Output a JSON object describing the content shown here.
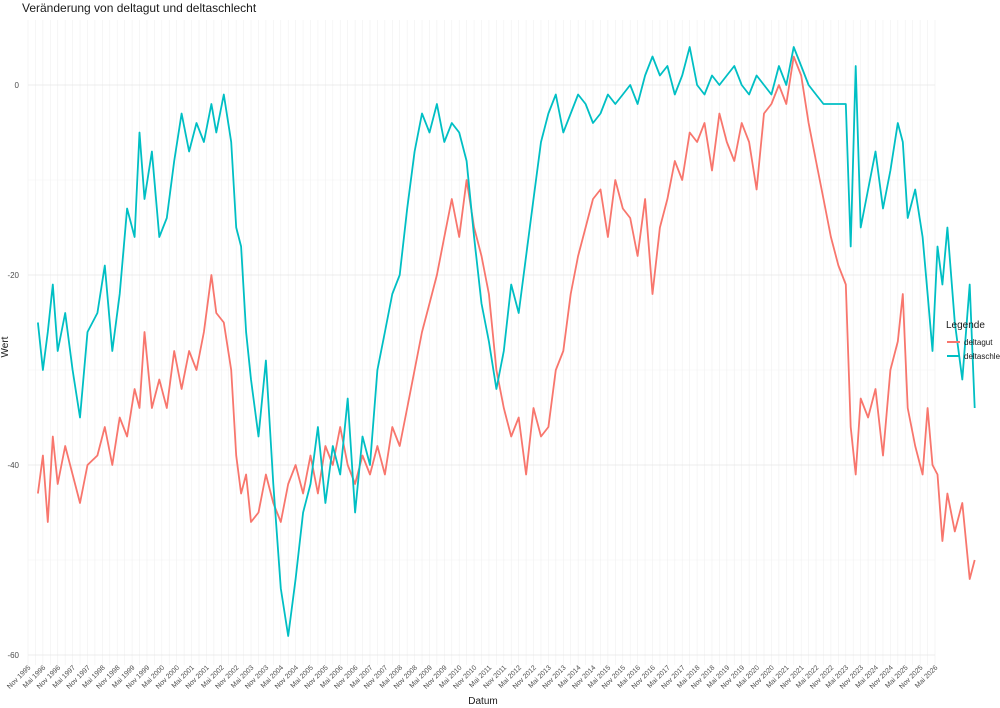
{
  "chart_data": {
    "type": "line",
    "title": "Veränderung von deltagut und deltaschlecht",
    "xlabel": "Datum",
    "ylabel": "Wert",
    "ylim": [
      -61.5,
      6
    ],
    "yticks": [
      0,
      -20,
      -40,
      -60
    ],
    "grid": true,
    "legend": {
      "title": "Legende",
      "placement": "right"
    },
    "x_axis": {
      "type": "date",
      "range": [
        "1995-11",
        "2026-05"
      ],
      "tick_labels": [
        "Nov 1995",
        "Mai 1996",
        "Nov 1996",
        "Mai 1997",
        "Nov 1997",
        "Mai 1998",
        "Nov 1998",
        "Mai 1999",
        "Nov 1999",
        "Mai 2000",
        "Nov 2000",
        "Mai 2001",
        "Nov 2001",
        "Mai 2002",
        "Nov 2002",
        "Mai 2003",
        "Nov 2003",
        "Mai 2004",
        "Nov 2004",
        "Mai 2005",
        "Nov 2005",
        "Mai 2006",
        "Nov 2006",
        "Mai 2007",
        "Nov 2007",
        "Mai 2008",
        "Nov 2008",
        "Mai 2009",
        "Nov 2009",
        "Mai 2010",
        "Nov 2010",
        "Mai 2011",
        "Nov 2011",
        "Mai 2012",
        "Nov 2012",
        "Mai 2013",
        "Nov 2013",
        "Mai 2014",
        "Nov 2014",
        "Mai 2015",
        "Nov 2015",
        "Mai 2016",
        "Nov 2016",
        "Mai 2017",
        "Nov 2017",
        "Mai 2018",
        "Nov 2018",
        "Mai 2019",
        "Nov 2019",
        "Mai 2020",
        "Nov 2020",
        "Mai 2021",
        "Nov 2021",
        "Mai 2022",
        "Nov 2022",
        "Mai 2023",
        "Nov 2023",
        "Mai 2024",
        "Nov 2024",
        "Mai 2025",
        "Nov 2025",
        "Mai 2026"
      ]
    },
    "series": [
      {
        "name": "deltagut",
        "color": "#F8766D",
        "points": [
          [
            "1996-03",
            -43
          ],
          [
            "1996-05",
            -39
          ],
          [
            "1996-07",
            -46
          ],
          [
            "1996-09",
            -37
          ],
          [
            "1996-11",
            -42
          ],
          [
            "1997-02",
            -38
          ],
          [
            "1997-05",
            -41
          ],
          [
            "1997-08",
            -44
          ],
          [
            "1997-11",
            -40
          ],
          [
            "1998-03",
            -39
          ],
          [
            "1998-06",
            -36
          ],
          [
            "1998-09",
            -40
          ],
          [
            "1998-12",
            -35
          ],
          [
            "1999-03",
            -37
          ],
          [
            "1999-06",
            -32
          ],
          [
            "1999-08",
            -34
          ],
          [
            "1999-10",
            -26
          ],
          [
            "2000-01",
            -34
          ],
          [
            "2000-04",
            -31
          ],
          [
            "2000-07",
            -34
          ],
          [
            "2000-10",
            -28
          ],
          [
            "2001-01",
            -32
          ],
          [
            "2001-04",
            -28
          ],
          [
            "2001-07",
            -30
          ],
          [
            "2001-10",
            -26
          ],
          [
            "2002-01",
            -20
          ],
          [
            "2002-03",
            -24
          ],
          [
            "2002-06",
            -25
          ],
          [
            "2002-09",
            -30
          ],
          [
            "2002-11",
            -39
          ],
          [
            "2003-01",
            -43
          ],
          [
            "2003-03",
            -41
          ],
          [
            "2003-05",
            -46
          ],
          [
            "2003-08",
            -45
          ],
          [
            "2003-11",
            -41
          ],
          [
            "2004-02",
            -44
          ],
          [
            "2004-05",
            -46
          ],
          [
            "2004-08",
            -42
          ],
          [
            "2004-11",
            -40
          ],
          [
            "2005-02",
            -43
          ],
          [
            "2005-05",
            -39
          ],
          [
            "2005-08",
            -43
          ],
          [
            "2005-11",
            -38
          ],
          [
            "2006-02",
            -40
          ],
          [
            "2006-05",
            -36
          ],
          [
            "2006-08",
            -40
          ],
          [
            "2006-11",
            -42
          ],
          [
            "2007-02",
            -39
          ],
          [
            "2007-05",
            -41
          ],
          [
            "2007-08",
            -38
          ],
          [
            "2007-11",
            -41
          ],
          [
            "2008-02",
            -36
          ],
          [
            "2008-05",
            -38
          ],
          [
            "2008-08",
            -34
          ],
          [
            "2008-11",
            -30
          ],
          [
            "2009-02",
            -26
          ],
          [
            "2009-05",
            -23
          ],
          [
            "2009-08",
            -20
          ],
          [
            "2009-11",
            -16
          ],
          [
            "2010-02",
            -12
          ],
          [
            "2010-05",
            -16
          ],
          [
            "2010-08",
            -10
          ],
          [
            "2010-11",
            -15
          ],
          [
            "2011-02",
            -18
          ],
          [
            "2011-05",
            -22
          ],
          [
            "2011-08",
            -30
          ],
          [
            "2011-11",
            -34
          ],
          [
            "2012-02",
            -37
          ],
          [
            "2012-05",
            -35
          ],
          [
            "2012-08",
            -41
          ],
          [
            "2012-11",
            -34
          ],
          [
            "2013-02",
            -37
          ],
          [
            "2013-05",
            -36
          ],
          [
            "2013-08",
            -30
          ],
          [
            "2013-11",
            -28
          ],
          [
            "2014-02",
            -22
          ],
          [
            "2014-05",
            -18
          ],
          [
            "2014-08",
            -15
          ],
          [
            "2014-11",
            -12
          ],
          [
            "2015-02",
            -11
          ],
          [
            "2015-05",
            -16
          ],
          [
            "2015-08",
            -10
          ],
          [
            "2015-11",
            -13
          ],
          [
            "2016-02",
            -14
          ],
          [
            "2016-05",
            -18
          ],
          [
            "2016-08",
            -12
          ],
          [
            "2016-11",
            -22
          ],
          [
            "2017-02",
            -15
          ],
          [
            "2017-05",
            -12
          ],
          [
            "2017-08",
            -8
          ],
          [
            "2017-11",
            -10
          ],
          [
            "2018-02",
            -5
          ],
          [
            "2018-05",
            -6
          ],
          [
            "2018-08",
            -4
          ],
          [
            "2018-11",
            -9
          ],
          [
            "2019-02",
            -3
          ],
          [
            "2019-05",
            -6
          ],
          [
            "2019-08",
            -8
          ],
          [
            "2019-11",
            -4
          ],
          [
            "2020-02",
            -6
          ],
          [
            "2020-05",
            -11
          ],
          [
            "2020-08",
            -3
          ],
          [
            "2020-11",
            -2
          ],
          [
            "2021-02",
            0
          ],
          [
            "2021-05",
            -2
          ],
          [
            "2021-08",
            3
          ],
          [
            "2021-11",
            1
          ],
          [
            "2022-02",
            -4
          ],
          [
            "2022-05",
            -8
          ],
          [
            "2022-08",
            -12
          ],
          [
            "2022-11",
            -16
          ],
          [
            "2023-02",
            -19
          ],
          [
            "2023-05",
            -21
          ],
          [
            "2023-07",
            -36
          ],
          [
            "2023-09",
            -41
          ],
          [
            "2023-11",
            -33
          ],
          [
            "2024-02",
            -35
          ],
          [
            "2024-05",
            -32
          ],
          [
            "2024-08",
            -39
          ],
          [
            "2024-11",
            -30
          ],
          [
            "2025-02",
            -27
          ],
          [
            "2025-04",
            -22
          ],
          [
            "2025-06",
            -34
          ],
          [
            "2025-09",
            -38
          ],
          [
            "2025-12",
            -41
          ],
          [
            "2026-02",
            -34
          ],
          [
            "2026-04",
            -40
          ],
          [
            "2026-06",
            -41
          ],
          [
            "2026-08",
            -48
          ],
          [
            "2026-10",
            -43
          ],
          [
            "2027-01",
            -47
          ],
          [
            "2027-04",
            -44
          ],
          [
            "2027-07",
            -52
          ],
          [
            "2027-09",
            -50
          ]
        ]
      },
      {
        "name": "deltaschlecht",
        "color": "#00BFC4",
        "points": [
          [
            "1996-03",
            -25
          ],
          [
            "1996-05",
            -30
          ],
          [
            "1996-07",
            -26
          ],
          [
            "1996-09",
            -21
          ],
          [
            "1996-11",
            -28
          ],
          [
            "1997-02",
            -24
          ],
          [
            "1997-05",
            -30
          ],
          [
            "1997-08",
            -35
          ],
          [
            "1997-11",
            -26
          ],
          [
            "1998-03",
            -24
          ],
          [
            "1998-06",
            -19
          ],
          [
            "1998-09",
            -28
          ],
          [
            "1998-12",
            -22
          ],
          [
            "1999-03",
            -13
          ],
          [
            "1999-06",
            -16
          ],
          [
            "1999-08",
            -5
          ],
          [
            "1999-10",
            -12
          ],
          [
            "2000-01",
            -7
          ],
          [
            "2000-04",
            -16
          ],
          [
            "2000-07",
            -14
          ],
          [
            "2000-10",
            -8
          ],
          [
            "2001-01",
            -3
          ],
          [
            "2001-04",
            -7
          ],
          [
            "2001-07",
            -4
          ],
          [
            "2001-10",
            -6
          ],
          [
            "2002-01",
            -2
          ],
          [
            "2002-03",
            -5
          ],
          [
            "2002-06",
            -1
          ],
          [
            "2002-09",
            -6
          ],
          [
            "2002-11",
            -15
          ],
          [
            "2003-01",
            -17
          ],
          [
            "2003-03",
            -26
          ],
          [
            "2003-05",
            -31
          ],
          [
            "2003-08",
            -37
          ],
          [
            "2003-11",
            -29
          ],
          [
            "2004-02",
            -42
          ],
          [
            "2004-05",
            -53
          ],
          [
            "2004-08",
            -58
          ],
          [
            "2004-11",
            -52
          ],
          [
            "2005-02",
            -45
          ],
          [
            "2005-05",
            -42
          ],
          [
            "2005-08",
            -36
          ],
          [
            "2005-11",
            -44
          ],
          [
            "2006-02",
            -38
          ],
          [
            "2006-05",
            -41
          ],
          [
            "2006-08",
            -33
          ],
          [
            "2006-11",
            -45
          ],
          [
            "2007-02",
            -37
          ],
          [
            "2007-05",
            -40
          ],
          [
            "2007-08",
            -30
          ],
          [
            "2007-11",
            -26
          ],
          [
            "2008-02",
            -22
          ],
          [
            "2008-05",
            -20
          ],
          [
            "2008-08",
            -13
          ],
          [
            "2008-11",
            -7
          ],
          [
            "2009-02",
            -3
          ],
          [
            "2009-05",
            -5
          ],
          [
            "2009-08",
            -2
          ],
          [
            "2009-11",
            -6
          ],
          [
            "2010-02",
            -4
          ],
          [
            "2010-05",
            -5
          ],
          [
            "2010-08",
            -8
          ],
          [
            "2010-11",
            -16
          ],
          [
            "2011-02",
            -23
          ],
          [
            "2011-05",
            -27
          ],
          [
            "2011-08",
            -32
          ],
          [
            "2011-11",
            -28
          ],
          [
            "2012-02",
            -21
          ],
          [
            "2012-05",
            -24
          ],
          [
            "2012-08",
            -18
          ],
          [
            "2012-11",
            -12
          ],
          [
            "2013-02",
            -6
          ],
          [
            "2013-05",
            -3
          ],
          [
            "2013-08",
            -1
          ],
          [
            "2013-11",
            -5
          ],
          [
            "2014-02",
            -3
          ],
          [
            "2014-05",
            -1
          ],
          [
            "2014-08",
            -2
          ],
          [
            "2014-11",
            -4
          ],
          [
            "2015-02",
            -3
          ],
          [
            "2015-05",
            -1
          ],
          [
            "2015-08",
            -2
          ],
          [
            "2015-11",
            -1
          ],
          [
            "2016-02",
            0
          ],
          [
            "2016-05",
            -2
          ],
          [
            "2016-08",
            1
          ],
          [
            "2016-11",
            3
          ],
          [
            "2017-02",
            1
          ],
          [
            "2017-05",
            2
          ],
          [
            "2017-08",
            -1
          ],
          [
            "2017-11",
            1
          ],
          [
            "2018-02",
            4
          ],
          [
            "2018-05",
            0
          ],
          [
            "2018-08",
            -1
          ],
          [
            "2018-11",
            1
          ],
          [
            "2019-02",
            0
          ],
          [
            "2019-05",
            1
          ],
          [
            "2019-08",
            2
          ],
          [
            "2019-11",
            0
          ],
          [
            "2020-02",
            -1
          ],
          [
            "2020-05",
            1
          ],
          [
            "2020-08",
            0
          ],
          [
            "2020-11",
            -1
          ],
          [
            "2021-02",
            2
          ],
          [
            "2021-05",
            0
          ],
          [
            "2021-08",
            4
          ],
          [
            "2021-11",
            2
          ],
          [
            "2022-02",
            0
          ],
          [
            "2022-05",
            -1
          ],
          [
            "2022-08",
            -2
          ],
          [
            "2022-11",
            -2
          ],
          [
            "2023-02",
            -2
          ],
          [
            "2023-05",
            -2
          ],
          [
            "2023-07",
            -17
          ],
          [
            "2023-09",
            2
          ],
          [
            "2023-11",
            -15
          ],
          [
            "2024-02",
            -11
          ],
          [
            "2024-05",
            -7
          ],
          [
            "2024-08",
            -13
          ],
          [
            "2024-11",
            -9
          ],
          [
            "2025-02",
            -4
          ],
          [
            "2025-04",
            -6
          ],
          [
            "2025-06",
            -14
          ],
          [
            "2025-09",
            -11
          ],
          [
            "2025-12",
            -16
          ],
          [
            "2026-02",
            -22
          ],
          [
            "2026-04",
            -28
          ],
          [
            "2026-06",
            -17
          ],
          [
            "2026-08",
            -21
          ],
          [
            "2026-10",
            -15
          ],
          [
            "2027-01",
            -25
          ],
          [
            "2027-04",
            -31
          ],
          [
            "2027-07",
            -21
          ],
          [
            "2027-09",
            -34
          ]
        ]
      }
    ]
  }
}
